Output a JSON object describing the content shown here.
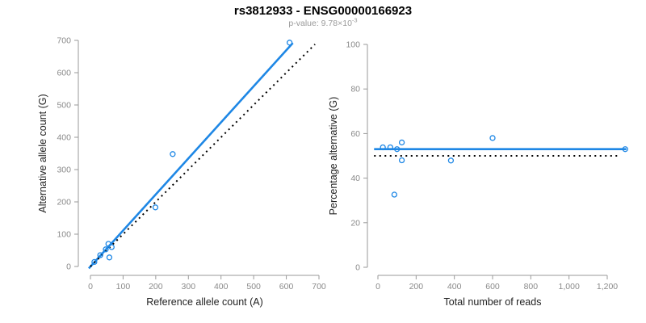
{
  "header": {
    "title": "rs3812933 - ENSG00000166923",
    "pvalue_prefix": "p-value: 9.78×10",
    "pvalue_exponent": "-3"
  },
  "colors": {
    "accent_blue": "#1E87E5",
    "reference_black": "#000000",
    "axis_gray": "#9A9A9A",
    "tick_label_gray": "#8A8A8A",
    "axis_title_color": "#222222"
  },
  "chart_data": [
    {
      "type": "scatter",
      "panel": "left",
      "title": "",
      "xlabel": "Reference allele count (A)",
      "ylabel": "Alternative allele count (G)",
      "xlim": [
        0,
        700
      ],
      "ylim": [
        0,
        700
      ],
      "grid": false,
      "legend": null,
      "xtick_values": [
        0,
        100,
        200,
        300,
        400,
        500,
        600,
        700
      ],
      "xtick_labels": [
        "0",
        "100",
        "200",
        "300",
        "400",
        "500",
        "600",
        "700"
      ],
      "ytick_values": [
        0,
        100,
        200,
        300,
        400,
        500,
        600,
        700
      ],
      "ytick_labels": [
        "0",
        "100",
        "200",
        "300",
        "400",
        "500",
        "600",
        "700"
      ],
      "points": [
        [
          12,
          14
        ],
        [
          30,
          35
        ],
        [
          47,
          53
        ],
        [
          55,
          70
        ],
        [
          65,
          60
        ],
        [
          58,
          28
        ],
        [
          199,
          183
        ],
        [
          252,
          348
        ],
        [
          610,
          693
        ]
      ],
      "lines": [
        {
          "name": "fit-line",
          "style": "solid",
          "color_key": "accent_blue",
          "from": [
            -5,
            -6
          ],
          "to": [
            620,
            692
          ]
        },
        {
          "name": "identity-line",
          "style": "dotted",
          "color_key": "reference_black",
          "from": [
            0,
            0
          ],
          "to": [
            688,
            688
          ]
        }
      ]
    },
    {
      "type": "scatter",
      "panel": "right",
      "title": "",
      "xlabel": "Total number of reads",
      "ylabel": "Percentage alternative (G)",
      "xlim": [
        0,
        1300
      ],
      "ylim": [
        0,
        100
      ],
      "grid": false,
      "legend": null,
      "xtick_values": [
        0,
        200,
        400,
        600,
        800,
        1000,
        1200
      ],
      "xtick_labels": [
        "0",
        "200",
        "400",
        "600",
        "800",
        "1,000",
        "1,200"
      ],
      "ytick_values": [
        0,
        20,
        40,
        60,
        80,
        100
      ],
      "ytick_labels": [
        "0",
        "20",
        "40",
        "60",
        "80",
        "100"
      ],
      "points": [
        [
          26,
          53.8
        ],
        [
          65,
          53.8
        ],
        [
          100,
          53
        ],
        [
          125,
          56
        ],
        [
          125,
          48
        ],
        [
          86,
          32.6
        ],
        [
          382,
          47.9
        ],
        [
          600,
          58
        ],
        [
          1294,
          53
        ]
      ],
      "lines": [
        {
          "name": "fit-line",
          "style": "solid",
          "color_key": "accent_blue",
          "from": [
            -20,
            53
          ],
          "to": [
            1300,
            53
          ]
        },
        {
          "name": "reference-line",
          "style": "dotted",
          "color_key": "reference_black",
          "from": [
            -20,
            50
          ],
          "to": [
            1270,
            50
          ]
        }
      ]
    }
  ]
}
